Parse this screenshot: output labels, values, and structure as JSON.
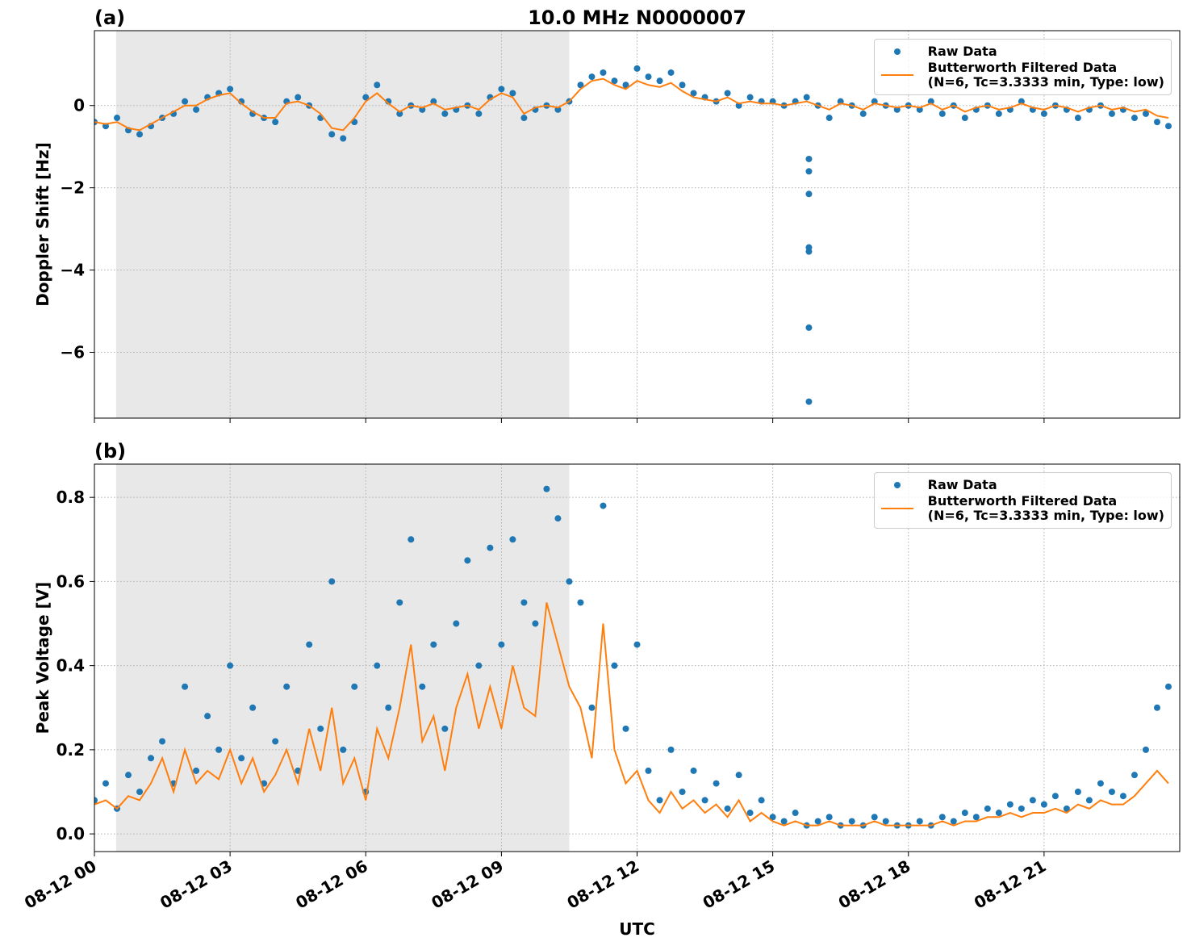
{
  "chart_data": [
    {
      "type": "line",
      "panel_label": "(a)",
      "title": "10.0 MHz N0000007",
      "ylabel": "Doppler Shift [Hz]",
      "xlim": [
        0,
        24
      ],
      "ylim": [
        -7.6,
        1.82
      ],
      "grid": true,
      "shaded_span": [
        0.48,
        10.5
      ],
      "legend": "upper right",
      "xticks": [
        0,
        3,
        6,
        9,
        12,
        15,
        18,
        21
      ],
      "yticks": [
        {
          "value": -6,
          "label": "−6"
        },
        {
          "value": -4,
          "label": "−4"
        },
        {
          "value": -2,
          "label": "−2"
        },
        0
      ],
      "x": [
        0,
        0.25,
        0.5,
        0.75,
        1,
        1.25,
        1.5,
        1.75,
        2,
        2.25,
        2.5,
        2.75,
        3,
        3.25,
        3.5,
        3.75,
        4,
        4.25,
        4.5,
        4.75,
        5,
        5.25,
        5.5,
        5.75,
        6,
        6.25,
        6.5,
        6.75,
        7,
        7.25,
        7.5,
        7.75,
        8,
        8.25,
        8.5,
        8.75,
        9,
        9.25,
        9.5,
        9.75,
        10,
        10.25,
        10.5,
        10.75,
        11,
        11.25,
        11.5,
        11.75,
        12,
        12.25,
        12.5,
        12.75,
        13,
        13.25,
        13.5,
        13.75,
        14,
        14.25,
        14.5,
        14.75,
        15,
        15.25,
        15.5,
        15.75,
        16,
        16.25,
        16.5,
        16.75,
        17,
        17.25,
        17.5,
        17.75,
        18,
        18.25,
        18.5,
        18.75,
        19,
        19.25,
        19.5,
        19.75,
        20,
        20.25,
        20.5,
        20.75,
        21,
        21.25,
        21.5,
        21.75,
        22,
        22.25,
        22.5,
        22.75,
        23,
        23.25,
        23.5,
        23.75
      ],
      "series": [
        {
          "name": "Raw Data",
          "mode": "markers",
          "color": "#1f77b4",
          "values": [
            -0.4,
            -0.5,
            -0.3,
            -0.6,
            -0.7,
            -0.5,
            -0.3,
            -0.2,
            0.1,
            -0.1,
            0.2,
            0.3,
            0.4,
            0.1,
            -0.2,
            -0.3,
            -0.4,
            0.1,
            0.2,
            0.0,
            -0.3,
            -0.7,
            -0.8,
            -0.4,
            0.2,
            0.5,
            0.1,
            -0.2,
            0.0,
            -0.1,
            0.1,
            -0.2,
            -0.1,
            0.0,
            -0.2,
            0.2,
            0.4,
            0.3,
            -0.3,
            -0.1,
            0.0,
            -0.1,
            0.1,
            0.5,
            0.7,
            0.8,
            0.6,
            0.5,
            0.9,
            0.7,
            0.6,
            0.8,
            0.5,
            0.3,
            0.2,
            0.1,
            0.3,
            0.0,
            0.2,
            0.1,
            0.1,
            0.0,
            0.1,
            0.2,
            0.0,
            -0.3,
            0.1,
            0.0,
            -0.2,
            0.1,
            0.0,
            -0.1,
            0.0,
            -0.1,
            0.1,
            -0.2,
            0.0,
            -0.3,
            -0.1,
            0.0,
            -0.2,
            -0.1,
            0.1,
            -0.1,
            -0.2,
            0.0,
            -0.1,
            -0.3,
            -0.1,
            0.0,
            -0.2,
            -0.1,
            -0.3,
            -0.2,
            -0.4,
            -0.5
          ]
        },
        {
          "name": "Butterworth Filtered Data\n(N=6, Tc=3.3333 min, Type: low)",
          "mode": "line",
          "color": "#ff7f0e",
          "values": [
            -0.4,
            -0.45,
            -0.4,
            -0.55,
            -0.6,
            -0.45,
            -0.3,
            -0.15,
            0.0,
            0.0,
            0.15,
            0.25,
            0.3,
            0.05,
            -0.15,
            -0.3,
            -0.3,
            0.05,
            0.1,
            0.0,
            -0.2,
            -0.55,
            -0.6,
            -0.3,
            0.1,
            0.3,
            0.05,
            -0.15,
            0.0,
            -0.05,
            0.05,
            -0.1,
            -0.05,
            0.0,
            -0.1,
            0.15,
            0.3,
            0.2,
            -0.2,
            -0.05,
            0.0,
            -0.05,
            0.1,
            0.4,
            0.6,
            0.65,
            0.5,
            0.4,
            0.6,
            0.5,
            0.45,
            0.55,
            0.35,
            0.2,
            0.15,
            0.1,
            0.2,
            0.05,
            0.1,
            0.05,
            0.05,
            0.0,
            0.05,
            0.1,
            0.0,
            -0.1,
            0.05,
            0.0,
            -0.1,
            0.05,
            0.0,
            -0.05,
            0.0,
            -0.05,
            0.05,
            -0.1,
            0.0,
            -0.15,
            -0.05,
            0.0,
            -0.1,
            -0.05,
            0.05,
            -0.05,
            -0.1,
            0.0,
            -0.05,
            -0.15,
            -0.05,
            0.0,
            -0.1,
            -0.05,
            -0.15,
            -0.1,
            -0.25,
            -0.3
          ]
        },
        {
          "mode": "markers",
          "color": "#1f77b4",
          "x": [
            15.8,
            15.8,
            15.8,
            15.8,
            15.8,
            15.8,
            15.8
          ],
          "values": [
            -1.3,
            -1.6,
            -2.15,
            -3.45,
            -3.55,
            -5.4,
            -7.2
          ]
        }
      ]
    },
    {
      "type": "line",
      "panel_label": "(b)",
      "ylabel": "Peak Voltage [V]",
      "xlabel": "UTC",
      "xlim": [
        0,
        24
      ],
      "ylim": [
        -0.042,
        0.879
      ],
      "grid": true,
      "shaded_span": [
        0.48,
        10.5
      ],
      "legend": "upper right",
      "xticks": [
        {
          "value": 0,
          "label": "08-12 00"
        },
        {
          "value": 3,
          "label": "08-12 03"
        },
        {
          "value": 6,
          "label": "08-12 06"
        },
        {
          "value": 9,
          "label": "08-12 09"
        },
        {
          "value": 12,
          "label": "08-12 12"
        },
        {
          "value": 15,
          "label": "08-12 15"
        },
        {
          "value": 18,
          "label": "08-12 18"
        },
        {
          "value": 21,
          "label": "08-12 21"
        }
      ],
      "yticks": [
        {
          "value": 0,
          "label": "0.0"
        },
        0.2,
        0.4,
        0.6,
        0.8
      ],
      "x": [
        0,
        0.25,
        0.5,
        0.75,
        1,
        1.25,
        1.5,
        1.75,
        2,
        2.25,
        2.5,
        2.75,
        3,
        3.25,
        3.5,
        3.75,
        4,
        4.25,
        4.5,
        4.75,
        5,
        5.25,
        5.5,
        5.75,
        6,
        6.25,
        6.5,
        6.75,
        7,
        7.25,
        7.5,
        7.75,
        8,
        8.25,
        8.5,
        8.75,
        9,
        9.25,
        9.5,
        9.75,
        10,
        10.25,
        10.5,
        10.75,
        11,
        11.25,
        11.5,
        11.75,
        12,
        12.25,
        12.5,
        12.75,
        13,
        13.25,
        13.5,
        13.75,
        14,
        14.25,
        14.5,
        14.75,
        15,
        15.25,
        15.5,
        15.75,
        16,
        16.25,
        16.5,
        16.75,
        17,
        17.25,
        17.5,
        17.75,
        18,
        18.25,
        18.5,
        18.75,
        19,
        19.25,
        19.5,
        19.75,
        20,
        20.25,
        20.5,
        20.75,
        21,
        21.25,
        21.5,
        21.75,
        22,
        22.25,
        22.5,
        22.75,
        23,
        23.25,
        23.5,
        23.75
      ],
      "series": [
        {
          "name": "Raw Data",
          "mode": "markers",
          "color": "#1f77b4",
          "values": [
            0.08,
            0.12,
            0.06,
            0.14,
            0.1,
            0.18,
            0.22,
            0.12,
            0.35,
            0.15,
            0.28,
            0.2,
            0.4,
            0.18,
            0.3,
            0.12,
            0.22,
            0.35,
            0.15,
            0.45,
            0.25,
            0.6,
            0.2,
            0.35,
            0.1,
            0.4,
            0.3,
            0.55,
            0.7,
            0.35,
            0.45,
            0.25,
            0.5,
            0.65,
            0.4,
            0.68,
            0.45,
            0.7,
            0.55,
            0.5,
            0.82,
            0.75,
            0.6,
            0.55,
            0.3,
            0.78,
            0.4,
            0.25,
            0.45,
            0.15,
            0.08,
            0.2,
            0.1,
            0.15,
            0.08,
            0.12,
            0.06,
            0.14,
            0.05,
            0.08,
            0.04,
            0.03,
            0.05,
            0.02,
            0.03,
            0.04,
            0.02,
            0.03,
            0.02,
            0.04,
            0.03,
            0.02,
            0.02,
            0.03,
            0.02,
            0.04,
            0.03,
            0.05,
            0.04,
            0.06,
            0.05,
            0.07,
            0.06,
            0.08,
            0.07,
            0.09,
            0.06,
            0.1,
            0.08,
            0.12,
            0.1,
            0.09,
            0.14,
            0.2,
            0.3,
            0.35
          ]
        },
        {
          "name": "Butterworth Filtered Data\n(N=6, Tc=3.3333 min, Type: low)",
          "mode": "line",
          "color": "#ff7f0e",
          "values": [
            0.07,
            0.08,
            0.06,
            0.09,
            0.08,
            0.12,
            0.18,
            0.1,
            0.2,
            0.12,
            0.15,
            0.13,
            0.2,
            0.12,
            0.18,
            0.1,
            0.14,
            0.2,
            0.12,
            0.25,
            0.15,
            0.3,
            0.12,
            0.18,
            0.08,
            0.25,
            0.18,
            0.3,
            0.45,
            0.22,
            0.28,
            0.15,
            0.3,
            0.38,
            0.25,
            0.35,
            0.25,
            0.4,
            0.3,
            0.28,
            0.55,
            0.45,
            0.35,
            0.3,
            0.18,
            0.5,
            0.2,
            0.12,
            0.15,
            0.08,
            0.05,
            0.1,
            0.06,
            0.08,
            0.05,
            0.07,
            0.04,
            0.08,
            0.03,
            0.05,
            0.03,
            0.02,
            0.03,
            0.02,
            0.02,
            0.03,
            0.02,
            0.02,
            0.02,
            0.03,
            0.02,
            0.02,
            0.02,
            0.02,
            0.02,
            0.03,
            0.02,
            0.03,
            0.03,
            0.04,
            0.04,
            0.05,
            0.04,
            0.05,
            0.05,
            0.06,
            0.05,
            0.07,
            0.06,
            0.08,
            0.07,
            0.07,
            0.09,
            0.12,
            0.15,
            0.12
          ]
        }
      ]
    }
  ]
}
